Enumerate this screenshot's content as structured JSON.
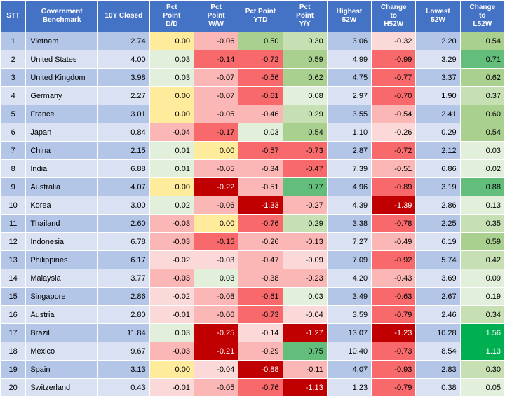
{
  "columns": [
    {
      "key": "stt",
      "label": "STT"
    },
    {
      "key": "name",
      "label": "Government Benchmark"
    },
    {
      "key": "closed",
      "label": "10Y Closed"
    },
    {
      "key": "dd",
      "label": "Pct Point D/D"
    },
    {
      "key": "ww",
      "label": "Pct Point W/W"
    },
    {
      "key": "ytd",
      "label": "Pct Point YTD"
    },
    {
      "key": "yy",
      "label": "Pct Point Y/Y"
    },
    {
      "key": "h52",
      "label": "Highest 52W"
    },
    {
      "key": "ch52",
      "label": "Change to H52W"
    },
    {
      "key": "l52",
      "label": "Lowest 52W"
    },
    {
      "key": "cl52",
      "label": "Change to L52W"
    }
  ],
  "header_bg": "#4472c4",
  "header_fg": "#ffffff",
  "row_band_even": "#b4c6e7",
  "row_band_odd": "#d9e1f2",
  "heat_palette": {
    "neg_strong": "#c00000",
    "neg_med": "#f8696b",
    "neg_light": "#fbb6b6",
    "neg_vlight": "#fcd9d9",
    "neutral": "#ffeb9c",
    "pos_vlight": "#e2efda",
    "pos_light": "#c6e0b4",
    "pos_med": "#a9d08e",
    "pos_strong": "#63be7b",
    "pos_vstrong": "#00b050"
  },
  "rows": [
    {
      "stt": 1,
      "name": "Vietnam",
      "closed": "2.74",
      "dd": "0.00",
      "ww": "-0.06",
      "ytd": "0.50",
      "yy": "0.30",
      "h52": "3.06",
      "ch52": "-0.32",
      "l52": "2.20",
      "cl52": "0.54"
    },
    {
      "stt": 2,
      "name": "United States",
      "closed": "4.00",
      "dd": "0.03",
      "ww": "-0.14",
      "ytd": "-0.72",
      "yy": "0.59",
      "h52": "4.99",
      "ch52": "-0.99",
      "l52": "3.29",
      "cl52": "0.71"
    },
    {
      "stt": 3,
      "name": "United Kingdom",
      "closed": "3.98",
      "dd": "0.03",
      "ww": "-0.07",
      "ytd": "-0.56",
      "yy": "0.62",
      "h52": "4.75",
      "ch52": "-0.77",
      "l52": "3.37",
      "cl52": "0.62"
    },
    {
      "stt": 4,
      "name": "Germany",
      "closed": "2.27",
      "dd": "0.00",
      "ww": "-0.07",
      "ytd": "-0.61",
      "yy": "0.08",
      "h52": "2.97",
      "ch52": "-0.70",
      "l52": "1.90",
      "cl52": "0.37"
    },
    {
      "stt": 5,
      "name": "France",
      "closed": "3.01",
      "dd": "0.00",
      "ww": "-0.05",
      "ytd": "-0.46",
      "yy": "0.29",
      "h52": "3.55",
      "ch52": "-0.54",
      "l52": "2.41",
      "cl52": "0.60"
    },
    {
      "stt": 6,
      "name": "Japan",
      "closed": "0.84",
      "dd": "-0.04",
      "ww": "-0.17",
      "ytd": "0.03",
      "yy": "0.54",
      "h52": "1.10",
      "ch52": "-0.26",
      "l52": "0.29",
      "cl52": "0.54"
    },
    {
      "stt": 7,
      "name": "China",
      "closed": "2.15",
      "dd": "0.01",
      "ww": "0.00",
      "ytd": "-0.57",
      "yy": "-0.73",
      "h52": "2.87",
      "ch52": "-0.72",
      "l52": "2.12",
      "cl52": "0.03"
    },
    {
      "stt": 8,
      "name": "India",
      "closed": "6.88",
      "dd": "0.01",
      "ww": "-0.05",
      "ytd": "-0.34",
      "yy": "-0.47",
      "h52": "7.39",
      "ch52": "-0.51",
      "l52": "6.86",
      "cl52": "0.02"
    },
    {
      "stt": 9,
      "name": "Australia",
      "closed": "4.07",
      "dd": "0.00",
      "ww": "-0.22",
      "ytd": "-0.51",
      "yy": "0.77",
      "h52": "4.96",
      "ch52": "-0.89",
      "l52": "3.19",
      "cl52": "0.88"
    },
    {
      "stt": 10,
      "name": "Korea",
      "closed": "3.00",
      "dd": "0.02",
      "ww": "-0.06",
      "ytd": "-1.33",
      "yy": "-0.27",
      "h52": "4.39",
      "ch52": "-1.39",
      "l52": "2.86",
      "cl52": "0.13"
    },
    {
      "stt": 11,
      "name": "Thailand",
      "closed": "2.60",
      "dd": "-0.03",
      "ww": "0.00",
      "ytd": "-0.76",
      "yy": "0.29",
      "h52": "3.38",
      "ch52": "-0.78",
      "l52": "2.25",
      "cl52": "0.35"
    },
    {
      "stt": 12,
      "name": "Indonesia",
      "closed": "6.78",
      "dd": "-0.03",
      "ww": "-0.15",
      "ytd": "-0.26",
      "yy": "-0.13",
      "h52": "7.27",
      "ch52": "-0.49",
      "l52": "6.19",
      "cl52": "0.59"
    },
    {
      "stt": 13,
      "name": "Philippines",
      "closed": "6.17",
      "dd": "-0.02",
      "ww": "-0.03",
      "ytd": "-0.47",
      "yy": "-0.09",
      "h52": "7.09",
      "ch52": "-0.92",
      "l52": "5.74",
      "cl52": "0.42"
    },
    {
      "stt": 14,
      "name": "Malaysia",
      "closed": "3.77",
      "dd": "-0.03",
      "ww": "0.03",
      "ytd": "-0.38",
      "yy": "-0.23",
      "h52": "4.20",
      "ch52": "-0.43",
      "l52": "3.69",
      "cl52": "0.09"
    },
    {
      "stt": 15,
      "name": "Singapore",
      "closed": "2.86",
      "dd": "-0.02",
      "ww": "-0.08",
      "ytd": "-0.61",
      "yy": "0.03",
      "h52": "3.49",
      "ch52": "-0.63",
      "l52": "2.67",
      "cl52": "0.19"
    },
    {
      "stt": 16,
      "name": "Austria",
      "closed": "2.80",
      "dd": "-0.01",
      "ww": "-0.06",
      "ytd": "-0.73",
      "yy": "-0.04",
      "h52": "3.59",
      "ch52": "-0.79",
      "l52": "2.46",
      "cl52": "0.34"
    },
    {
      "stt": 17,
      "name": "Brazil",
      "closed": "11.84",
      "dd": "0.03",
      "ww": "-0.25",
      "ytd": "-0.14",
      "yy": "-1.27",
      "h52": "13.07",
      "ch52": "-1.23",
      "l52": "10.28",
      "cl52": "1.56"
    },
    {
      "stt": 18,
      "name": "Mexico",
      "closed": "9.67",
      "dd": "-0.03",
      "ww": "-0.21",
      "ytd": "-0.29",
      "yy": "0.75",
      "h52": "10.40",
      "ch52": "-0.73",
      "l52": "8.54",
      "cl52": "1.13"
    },
    {
      "stt": 19,
      "name": "Spain",
      "closed": "3.13",
      "dd": "0.00",
      "ww": "-0.04",
      "ytd": "-0.88",
      "yy": "-0.11",
      "h52": "4.07",
      "ch52": "-0.93",
      "l52": "2.83",
      "cl52": "0.30"
    },
    {
      "stt": 20,
      "name": "Switzerland",
      "closed": "0.43",
      "dd": "-0.01",
      "ww": "-0.05",
      "ytd": "-0.76",
      "yy": "-1.13",
      "h52": "1.23",
      "ch52": "-0.79",
      "l52": "0.38",
      "cl52": "0.05"
    }
  ],
  "heat_columns": [
    "dd",
    "ww",
    "ytd",
    "yy",
    "ch52",
    "cl52"
  ],
  "band_columns": [
    "stt",
    "name",
    "closed",
    "h52",
    "l52"
  ],
  "font_size_header": 10,
  "font_size_cell": 11
}
